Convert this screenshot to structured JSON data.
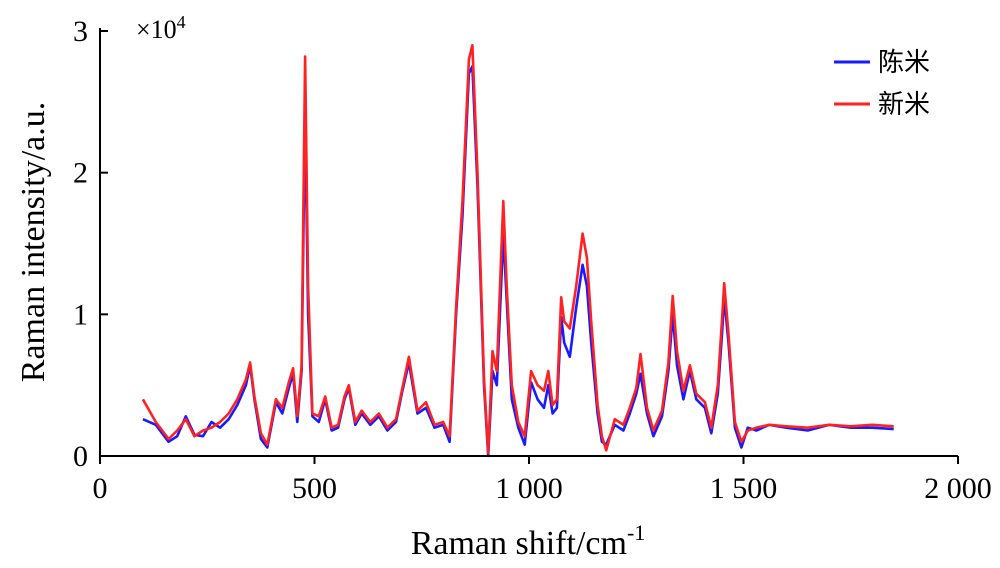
{
  "chart_data": {
    "type": "line",
    "xlabel": "Raman shift/cm",
    "xlabel_sup": "-1",
    "ylabel": "Raman intensity/a.u.",
    "xlim": [
      0,
      2000
    ],
    "ylim": [
      0,
      3
    ],
    "x_ticks": [
      0,
      500,
      1000,
      1500,
      2000
    ],
    "x_tick_labels": [
      "0",
      "500",
      "1 000",
      "1 500",
      "2 000"
    ],
    "y_ticks": [
      0,
      1,
      2,
      3
    ],
    "y_tick_labels": [
      "0",
      "1",
      "2",
      "3"
    ],
    "y_multiplier_base": "×10",
    "y_multiplier_exp": "4",
    "grid": false,
    "legend_position": "top-right",
    "series": [
      {
        "name": "陈米",
        "color": "#1a1aff",
        "x": [
          100,
          130,
          160,
          180,
          200,
          220,
          240,
          260,
          280,
          300,
          320,
          340,
          350,
          360,
          375,
          390,
          410,
          425,
          440,
          450,
          460,
          470,
          478,
          485,
          495,
          510,
          525,
          540,
          555,
          570,
          580,
          595,
          610,
          630,
          650,
          670,
          690,
          705,
          720,
          740,
          760,
          780,
          800,
          815,
          830,
          845,
          860,
          868,
          880,
          895,
          905,
          915,
          925,
          935,
          940,
          948,
          960,
          975,
          990,
          1005,
          1020,
          1035,
          1045,
          1055,
          1065,
          1075,
          1082,
          1095,
          1110,
          1125,
          1135,
          1145,
          1160,
          1170,
          1180,
          1200,
          1220,
          1235,
          1250,
          1260,
          1275,
          1290,
          1310,
          1325,
          1335,
          1345,
          1360,
          1375,
          1390,
          1410,
          1425,
          1440,
          1450,
          1455,
          1465,
          1480,
          1495,
          1510,
          1530,
          1560,
          1600,
          1650,
          1700,
          1750,
          1800,
          1850
        ],
        "y": [
          0.26,
          0.22,
          0.1,
          0.14,
          0.28,
          0.15,
          0.14,
          0.24,
          0.2,
          0.26,
          0.36,
          0.5,
          0.64,
          0.4,
          0.12,
          0.06,
          0.38,
          0.3,
          0.48,
          0.58,
          0.24,
          0.6,
          2.45,
          1.0,
          0.28,
          0.24,
          0.4,
          0.18,
          0.2,
          0.4,
          0.48,
          0.22,
          0.3,
          0.22,
          0.28,
          0.18,
          0.24,
          0.46,
          0.66,
          0.3,
          0.34,
          0.2,
          0.22,
          0.1,
          1.0,
          1.7,
          2.7,
          2.75,
          1.9,
          0.5,
          0.0,
          0.6,
          0.5,
          1.2,
          1.57,
          1.1,
          0.4,
          0.2,
          0.08,
          0.52,
          0.4,
          0.34,
          0.5,
          0.3,
          0.34,
          0.98,
          0.8,
          0.7,
          1.05,
          1.35,
          1.2,
          0.8,
          0.3,
          0.1,
          0.08,
          0.22,
          0.18,
          0.3,
          0.44,
          0.58,
          0.3,
          0.14,
          0.28,
          0.6,
          1.0,
          0.64,
          0.4,
          0.6,
          0.4,
          0.34,
          0.16,
          0.44,
          0.86,
          1.12,
          0.8,
          0.2,
          0.06,
          0.2,
          0.18,
          0.22,
          0.2,
          0.18,
          0.22,
          0.2,
          0.2,
          0.19
        ]
      },
      {
        "name": "新米",
        "color": "#ff2222",
        "x": [
          100,
          130,
          160,
          180,
          200,
          220,
          240,
          260,
          280,
          300,
          320,
          340,
          350,
          360,
          375,
          390,
          410,
          425,
          440,
          450,
          460,
          470,
          478,
          485,
          495,
          510,
          525,
          540,
          555,
          570,
          580,
          595,
          610,
          630,
          650,
          670,
          690,
          705,
          720,
          740,
          760,
          780,
          800,
          815,
          830,
          845,
          860,
          868,
          880,
          895,
          905,
          915,
          925,
          935,
          940,
          948,
          960,
          975,
          990,
          1005,
          1020,
          1035,
          1045,
          1055,
          1065,
          1075,
          1082,
          1095,
          1110,
          1125,
          1135,
          1145,
          1160,
          1170,
          1180,
          1200,
          1220,
          1235,
          1250,
          1260,
          1275,
          1290,
          1310,
          1325,
          1335,
          1345,
          1360,
          1375,
          1390,
          1410,
          1425,
          1440,
          1450,
          1455,
          1465,
          1480,
          1495,
          1510,
          1530,
          1560,
          1600,
          1650,
          1700,
          1750,
          1800,
          1850
        ],
        "y": [
          0.4,
          0.24,
          0.12,
          0.18,
          0.26,
          0.14,
          0.18,
          0.2,
          0.24,
          0.3,
          0.4,
          0.54,
          0.66,
          0.42,
          0.16,
          0.08,
          0.4,
          0.34,
          0.52,
          0.62,
          0.28,
          0.64,
          2.82,
          1.2,
          0.3,
          0.28,
          0.42,
          0.2,
          0.22,
          0.42,
          0.5,
          0.24,
          0.32,
          0.24,
          0.3,
          0.2,
          0.26,
          0.48,
          0.7,
          0.32,
          0.38,
          0.22,
          0.24,
          0.14,
          1.05,
          1.8,
          2.8,
          2.9,
          2.0,
          0.55,
          0.02,
          0.74,
          0.6,
          1.4,
          1.8,
          1.2,
          0.5,
          0.24,
          0.14,
          0.6,
          0.5,
          0.46,
          0.6,
          0.36,
          0.4,
          1.12,
          0.95,
          0.9,
          1.2,
          1.57,
          1.4,
          0.95,
          0.36,
          0.14,
          0.04,
          0.26,
          0.22,
          0.34,
          0.48,
          0.72,
          0.34,
          0.18,
          0.32,
          0.66,
          1.13,
          0.74,
          0.46,
          0.64,
          0.44,
          0.38,
          0.2,
          0.5,
          0.96,
          1.22,
          0.86,
          0.24,
          0.1,
          0.18,
          0.2,
          0.22,
          0.21,
          0.2,
          0.22,
          0.21,
          0.22,
          0.21
        ]
      }
    ]
  }
}
